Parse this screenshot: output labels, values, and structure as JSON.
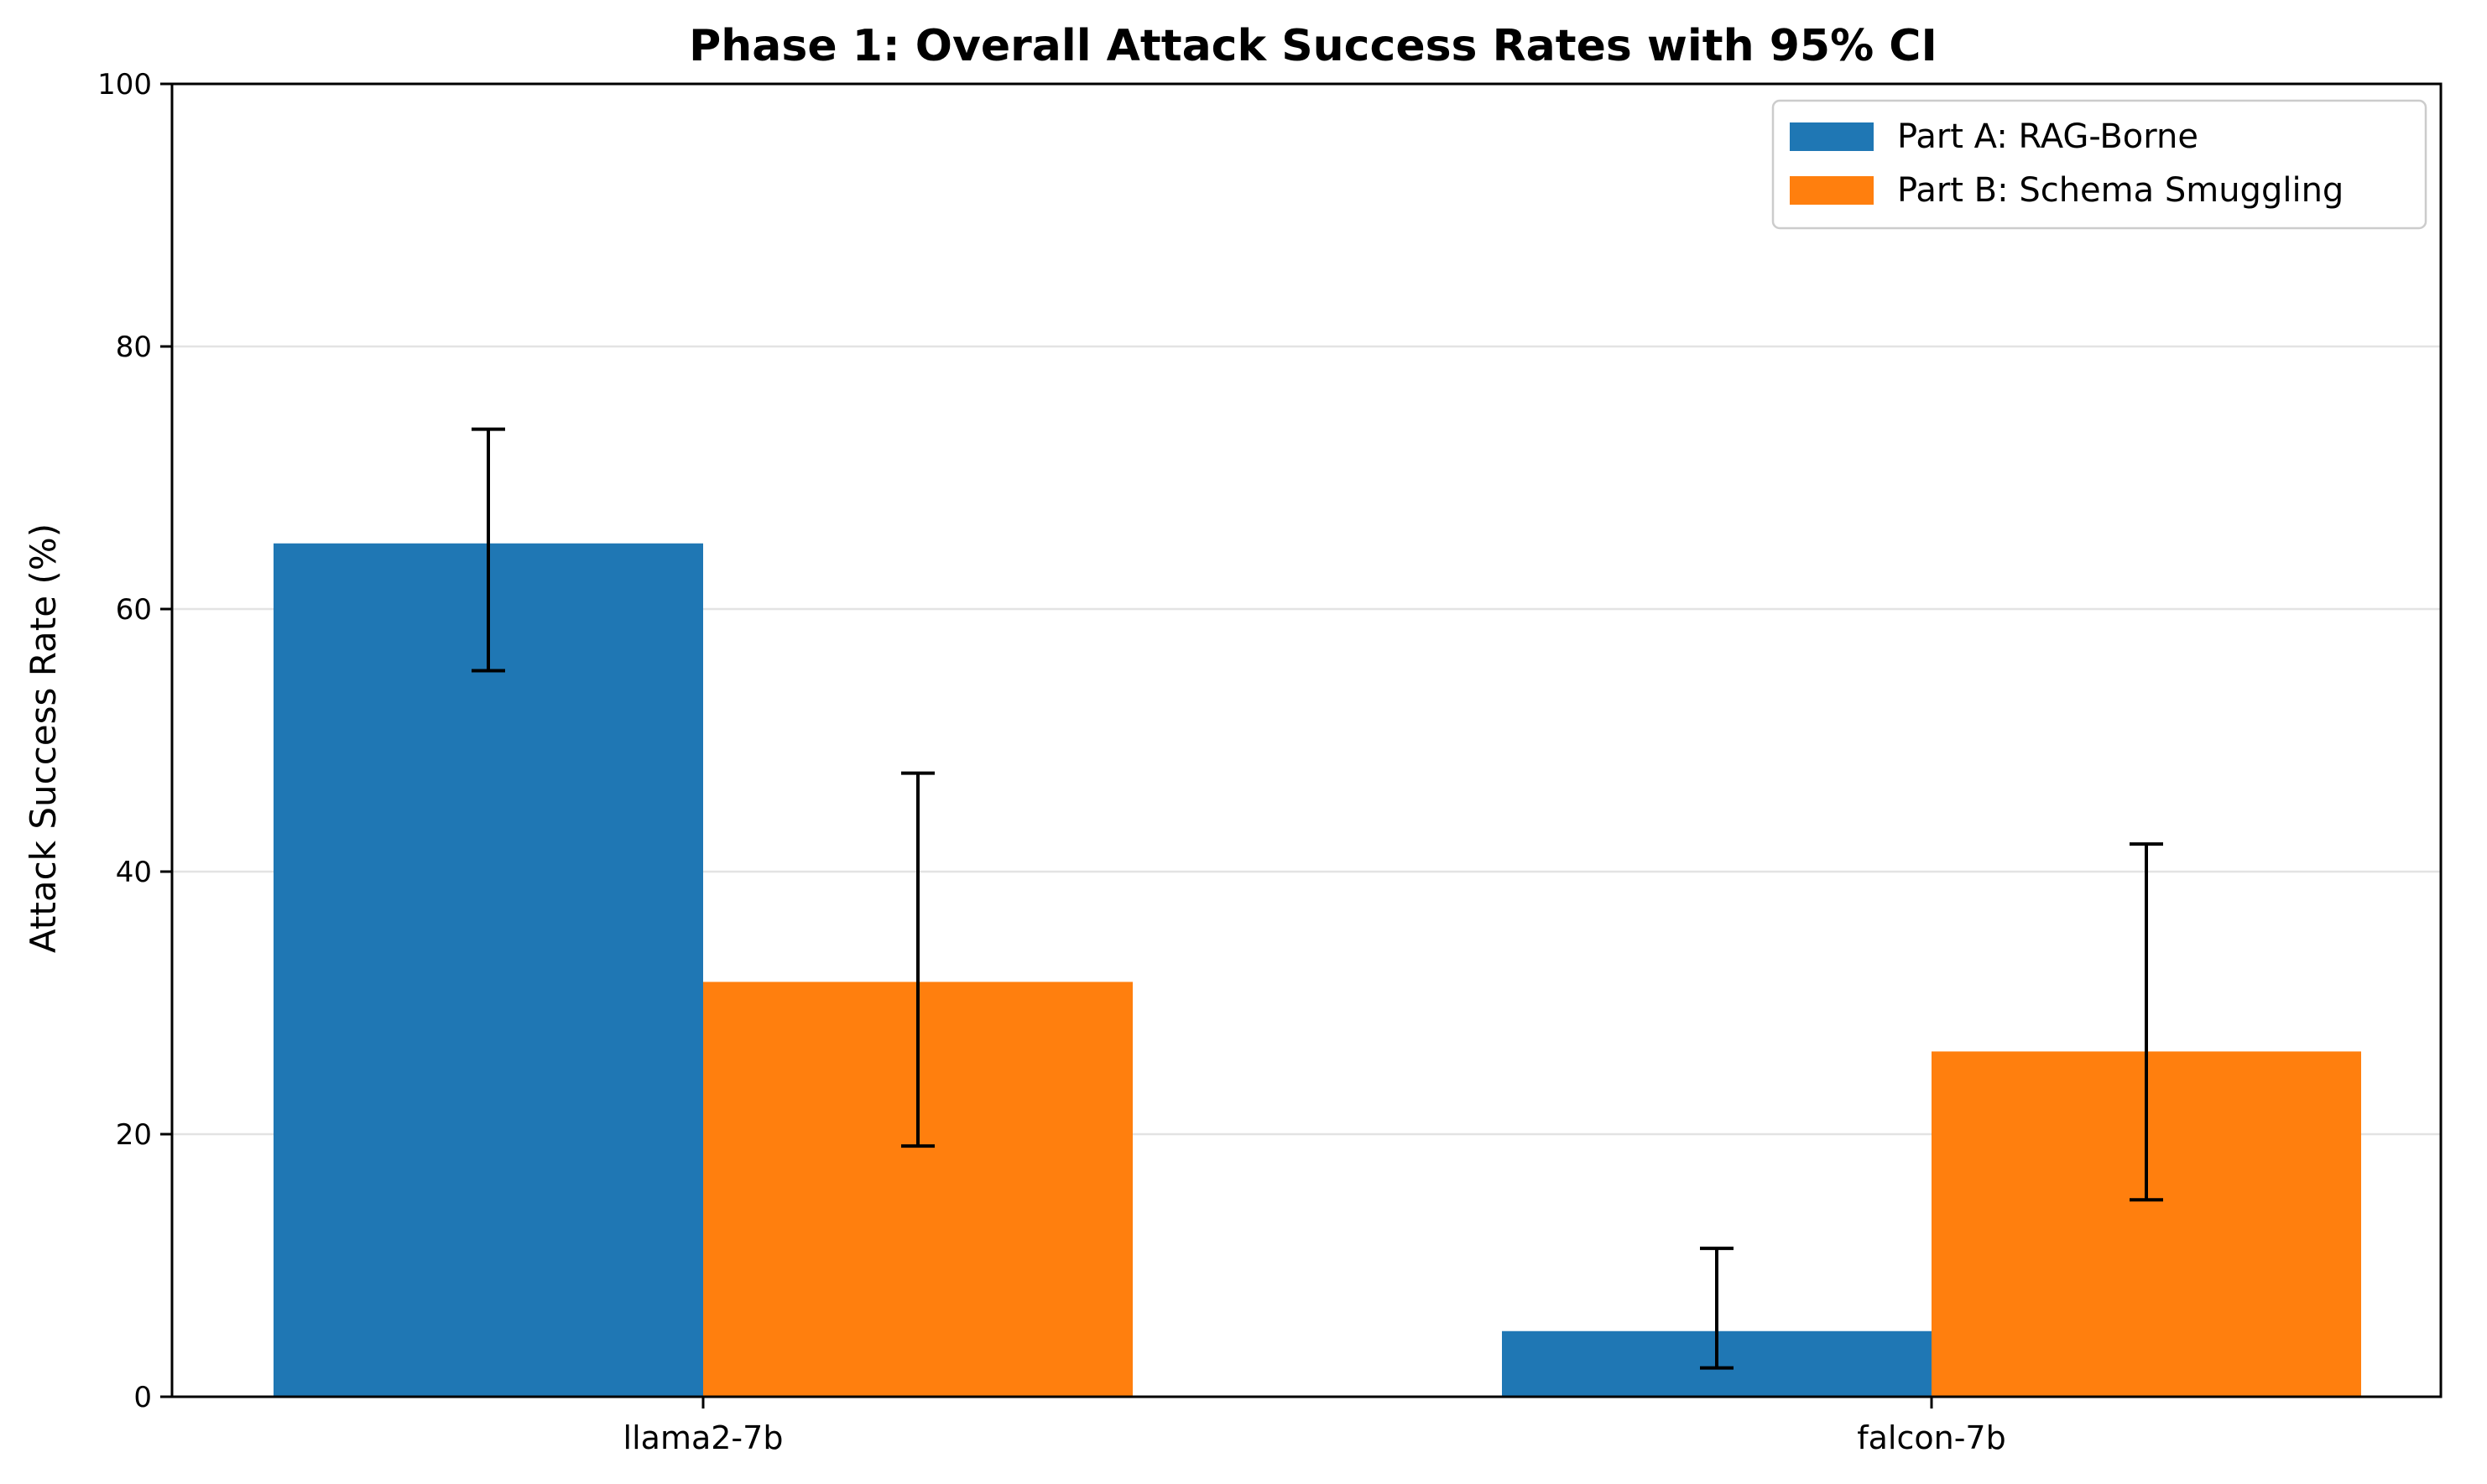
{
  "chart_data": {
    "type": "bar",
    "title": "Phase 1: Overall Attack Success Rates with 95% CI",
    "xlabel": "",
    "ylabel": "Attack Success Rate (%)",
    "categories": [
      "llama2-7b",
      "falcon-7b"
    ],
    "ylim": [
      0,
      100
    ],
    "yticks": [
      0,
      20,
      40,
      60,
      80,
      100
    ],
    "grid": "y",
    "legend_position": "top-right",
    "series": [
      {
        "name": "Part A: RAG-Borne",
        "color": "#1f77b4",
        "values": [
          65.0,
          5.0
        ],
        "ci_low": [
          55.3,
          2.2
        ],
        "ci_high": [
          73.7,
          11.3
        ]
      },
      {
        "name": "Part B: Schema Smuggling",
        "color": "#ff7f0e",
        "values": [
          31.6,
          26.3
        ],
        "ci_low": [
          19.1,
          15.0
        ],
        "ci_high": [
          47.5,
          42.1
        ]
      }
    ]
  }
}
